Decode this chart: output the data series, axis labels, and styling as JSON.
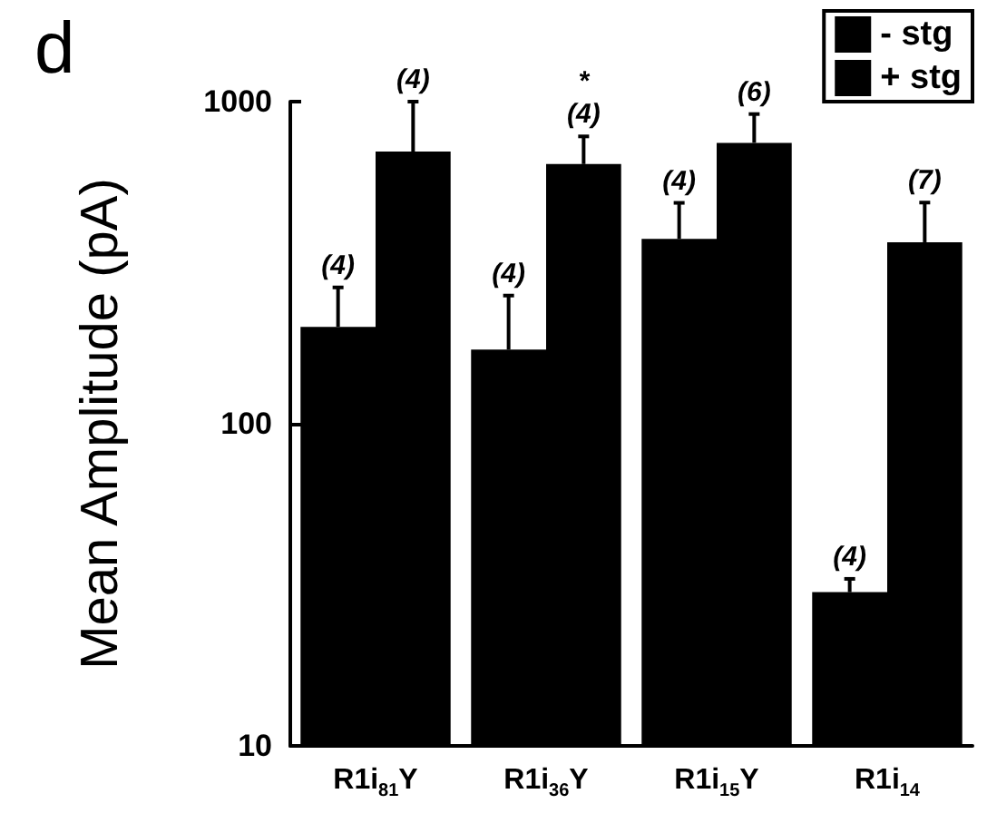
{
  "chart_data": {
    "type": "bar",
    "title": "d",
    "ylabel": "Mean Amplitude (pA)",
    "categories": [
      "R1i$_{81}$Y",
      "R1i$_{36}$Y",
      "R1i$_{15}$Y",
      "R1i$_{14}$"
    ],
    "series": [
      {
        "name": "- stg",
        "color": "#000000",
        "values": [
          200,
          170,
          375,
          30
        ],
        "errors": [
          65,
          80,
          110,
          3
        ]
      },
      {
        "name": "+ stg",
        "color": "#000000",
        "values": [
          700,
          640,
          745,
          366
        ],
        "errors": [
          300,
          140,
          170,
          120
        ]
      }
    ],
    "annotations": [
      {
        "text": "(4)",
        "x": "R1i$_{81}$Y",
        "y": 200
      },
      {
        "text": "(4)",
        "x": "R1i$_{81}$Y",
        "y": 700
      },
      {
        "text": "(4)",
        "x": "R1i$_{36}$Y",
        "y": 170
      },
      {
        "text": "*\n(4)",
        "x": "R1i$_{36}$Y",
        "y": 640
      },
      {
        "text": "(4)",
        "x": "R1i$_{15}$Y",
        "y": 375
      },
      {
        "text": "(6)",
        "x": "R1i$_{15}$Y",
        "y": 745
      },
      {
        "text": "(4)",
        "x": "R1i$_{14}$",
        "y": 30
      },
      {
        "text": "(7)",
        "x": "R1i$_{14}$",
        "y": 366
      }
    ],
    "log": "y",
    "ylim": [
      10,
      1000
    ],
    "yticks": [
      10,
      100,
      1000
    ],
    "grid": false,
    "legend": "top right"
  }
}
